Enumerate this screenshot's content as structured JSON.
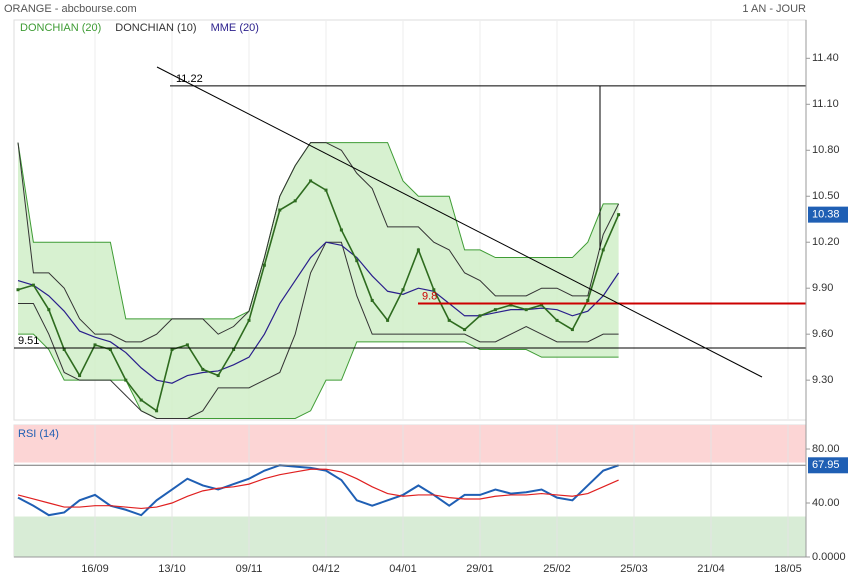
{
  "header": {
    "title": "ORANGE - abcbourse.com",
    "period": "1 AN - JOUR"
  },
  "chart_data": [
    {
      "type": "price",
      "categories": [
        null,
        null,
        null,
        null,
        null,
        "16/09",
        null,
        null,
        null,
        null,
        "13/10",
        null,
        null,
        null,
        null,
        "09/11",
        null,
        null,
        null,
        null,
        "04/12",
        null,
        null,
        null,
        null,
        "04/01",
        null,
        null,
        null,
        null,
        "29/01",
        null,
        null,
        null,
        null,
        "25/02",
        null,
        null,
        null,
        null,
        "25/03",
        null,
        null,
        null,
        null,
        "21/04",
        null,
        null,
        null,
        null,
        "18/05",
        null
      ],
      "close": [
        9.89,
        9.92,
        9.76,
        9.5,
        9.33,
        9.53,
        9.5,
        9.3,
        9.17,
        9.1,
        9.5,
        9.53,
        9.37,
        9.33,
        9.5,
        9.69,
        10.05,
        10.41,
        10.47,
        10.6,
        10.54,
        10.28,
        10.08,
        9.82,
        9.69,
        9.89,
        10.15,
        9.89,
        9.69,
        9.63,
        9.72,
        9.76,
        9.79,
        9.76,
        9.79,
        9.69,
        9.63,
        9.82,
        10.15,
        10.38,
        null,
        null,
        null,
        null,
        null,
        null,
        null,
        null,
        null,
        null,
        null,
        null
      ],
      "close_color": "#2e6b1f",
      "channels": [
        {
          "name": "DONCHIAN (20)",
          "color": "#3f9c35",
          "fill": "#cdeec4",
          "upper": [
            10.85,
            10.2,
            10.2,
            10.2,
            10.2,
            10.2,
            10.2,
            9.7,
            9.7,
            9.7,
            9.7,
            9.7,
            9.7,
            9.7,
            9.7,
            9.75,
            10.1,
            10.5,
            10.7,
            10.85,
            10.85,
            10.85,
            10.85,
            10.85,
            10.85,
            10.6,
            10.5,
            10.5,
            10.5,
            10.15,
            10.15,
            10.1,
            10.1,
            10.1,
            10.1,
            10.1,
            10.1,
            10.2,
            10.45,
            10.45,
            null,
            null,
            null,
            null,
            null,
            null,
            null,
            null,
            null,
            null,
            null,
            null
          ],
          "lower": [
            9.6,
            9.6,
            9.5,
            9.3,
            9.3,
            9.3,
            9.3,
            9.3,
            9.1,
            9.05,
            9.05,
            9.05,
            9.05,
            9.05,
            9.05,
            9.05,
            9.05,
            9.05,
            9.05,
            9.1,
            9.3,
            9.3,
            9.55,
            9.55,
            9.55,
            9.55,
            9.55,
            9.55,
            9.55,
            9.55,
            9.5,
            9.5,
            9.5,
            9.5,
            9.45,
            9.45,
            9.45,
            9.45,
            9.45,
            9.45,
            null,
            null,
            null,
            null,
            null,
            null,
            null,
            null,
            null,
            null,
            null,
            null
          ]
        },
        {
          "name": "DONCHIAN (10)",
          "color": "#333333",
          "fill": null,
          "upper": [
            10.85,
            10,
            10,
            9.9,
            9.7,
            9.6,
            9.6,
            9.55,
            9.55,
            9.6,
            9.7,
            9.7,
            9.7,
            9.6,
            9.65,
            9.75,
            10.1,
            10.5,
            10.7,
            10.85,
            10.85,
            10.8,
            10.65,
            10.55,
            10.3,
            10.3,
            10.3,
            10.2,
            10.15,
            10,
            9.95,
            9.85,
            9.85,
            9.85,
            9.9,
            9.9,
            9.85,
            9.85,
            10.25,
            10.45,
            null,
            null,
            null,
            null,
            null,
            null,
            null,
            null,
            null,
            null,
            null,
            null
          ],
          "lower": [
            9.8,
            9.8,
            9.6,
            9.35,
            9.3,
            9.3,
            9.3,
            9.2,
            9.1,
            9.05,
            9.05,
            9.05,
            9.1,
            9.25,
            9.25,
            9.25,
            9.3,
            9.35,
            9.6,
            10,
            10.2,
            10.2,
            9.85,
            9.6,
            9.6,
            9.6,
            9.6,
            9.6,
            9.6,
            9.6,
            9.55,
            9.55,
            9.6,
            9.65,
            9.6,
            9.55,
            9.55,
            9.55,
            9.6,
            9.6,
            null,
            null,
            null,
            null,
            null,
            null,
            null,
            null,
            null,
            null,
            null,
            null
          ]
        }
      ],
      "series": [
        {
          "name": "MME (20)",
          "color": "#2a1f8c",
          "values": [
            9.95,
            9.92,
            9.85,
            9.75,
            9.62,
            9.58,
            9.55,
            9.48,
            9.38,
            9.3,
            9.28,
            9.33,
            9.35,
            9.36,
            9.4,
            9.45,
            9.6,
            9.8,
            9.95,
            10.1,
            10.2,
            10.18,
            10.1,
            9.98,
            9.88,
            9.86,
            9.9,
            9.88,
            9.8,
            9.72,
            9.72,
            9.74,
            9.76,
            9.76,
            9.77,
            9.76,
            9.72,
            9.75,
            9.85,
            10,
            null,
            null,
            null,
            null,
            null,
            null,
            null,
            null,
            null,
            null,
            null,
            null
          ]
        }
      ],
      "levels": [
        {
          "value": 11.22,
          "color": "#000000"
        },
        {
          "value": 9.51,
          "color": "#000000"
        },
        {
          "value": 9.8,
          "color": "#cc0000"
        }
      ],
      "ylim": [
        9.04,
        11.65
      ],
      "yticks": [
        {
          "value": 11.4,
          "label": "11.40"
        },
        {
          "value": 11.1,
          "label": "11.10"
        },
        {
          "value": 10.8,
          "label": "10.80"
        },
        {
          "value": 10.5,
          "label": "10.50"
        },
        {
          "value": 10.2,
          "label": "10.20"
        },
        {
          "value": 9.9,
          "label": "9.90"
        },
        {
          "value": 9.6,
          "label": "9.60"
        },
        {
          "value": 9.3,
          "label": "9.30"
        }
      ]
    },
    {
      "type": "rsi",
      "title": "RSI (14)",
      "ylim": [
        0,
        97.8
      ],
      "overbought": 70,
      "oversold": 30,
      "yticks": [
        {
          "value": 80,
          "label": "80.00"
        },
        {
          "value": 40,
          "label": "40.00"
        },
        {
          "value": 0,
          "label": "0.0000"
        }
      ],
      "series": [
        {
          "color": "#1f5fb4",
          "values": [
            44,
            38,
            31,
            33,
            42,
            46,
            38,
            35,
            31,
            42,
            50,
            58,
            53,
            50,
            54,
            58,
            64,
            68,
            67,
            66,
            64,
            57,
            42,
            38,
            42,
            46,
            53,
            46,
            38,
            46,
            46,
            50,
            47,
            48,
            50,
            44,
            42,
            53,
            64,
            67.95,
            null,
            null,
            null,
            null,
            null,
            null,
            null,
            null,
            null,
            null,
            null,
            null
          ]
        },
        {
          "color": "#e02020",
          "values": [
            46,
            43,
            40,
            37,
            37,
            38,
            38,
            37,
            36,
            37,
            40,
            45,
            49,
            51,
            52,
            54,
            58,
            61,
            63,
            65,
            65,
            63,
            58,
            52,
            47,
            45,
            46,
            46,
            44,
            43,
            43,
            45,
            46,
            46,
            47,
            46,
            45,
            47,
            52,
            57,
            null,
            null,
            null,
            null,
            null,
            null,
            null,
            null,
            null,
            null,
            null,
            null
          ]
        }
      ]
    }
  ]
}
